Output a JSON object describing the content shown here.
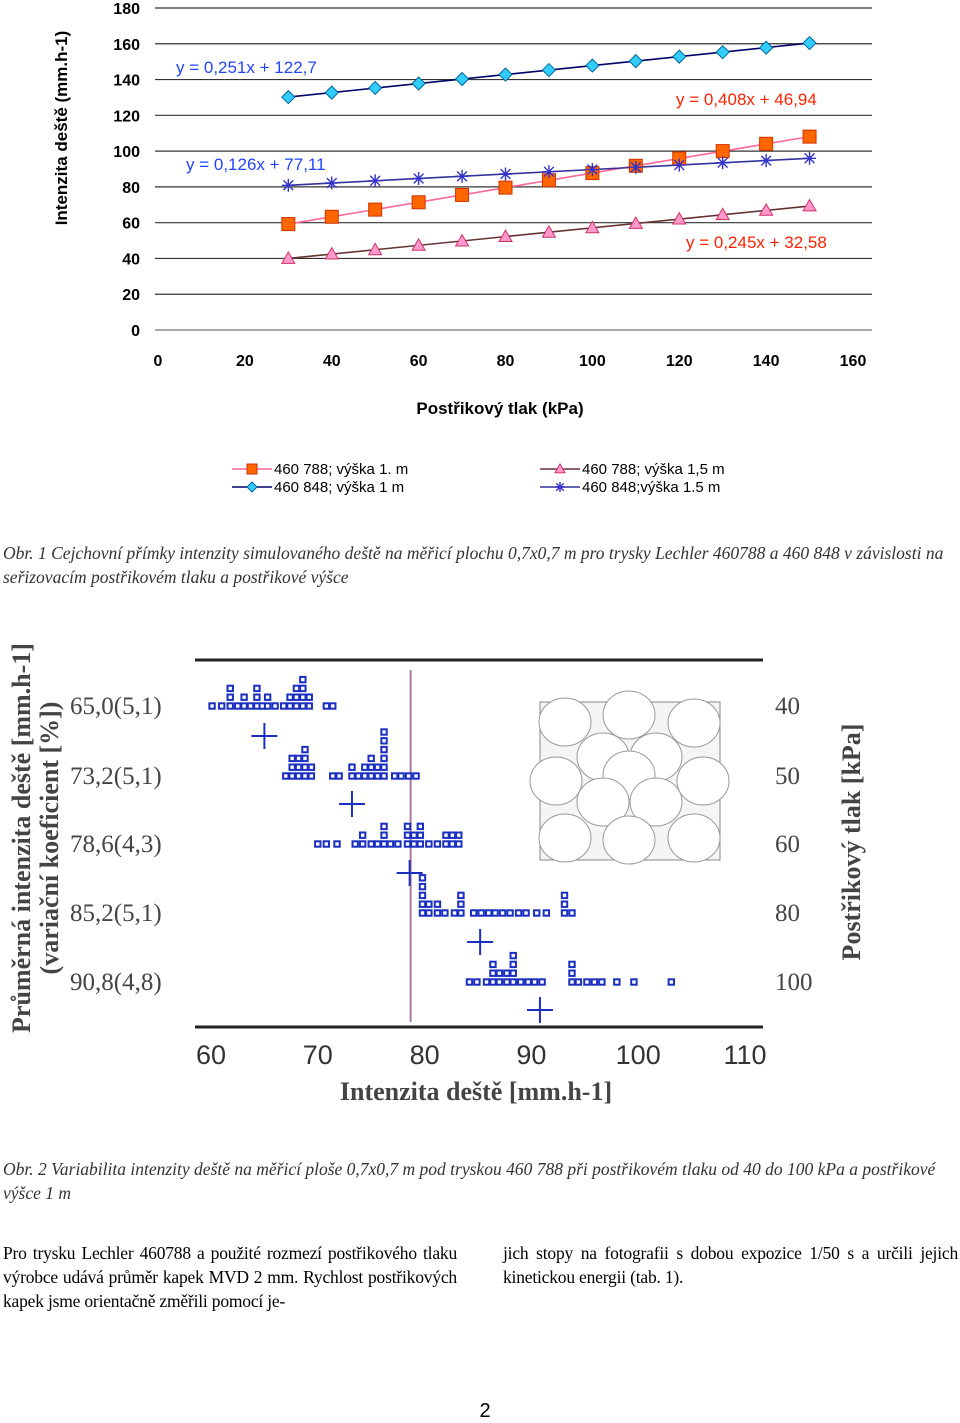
{
  "figure1": {
    "caption": "Obr. 1 Cejchovní přímky intenzity simulovaného deště na měřicí plochu 0,7x0,7 m pro trysky Lechler 460788 a 460 848 v závislosti na seřizovacím postřikovém tlaku a postřikové výšce",
    "chart_data": {
      "type": "scatter",
      "xlabel": "Postřikový tlak (kPa)",
      "ylabel": "Intenzita deště (mm.h-1)",
      "xlim": [
        0,
        160
      ],
      "ylim": [
        0,
        180
      ],
      "x_ticks": [
        "0",
        "20",
        "40",
        "60",
        "80",
        "100",
        "120",
        "140",
        "160"
      ],
      "y_ticks": [
        "0",
        "20",
        "40",
        "60",
        "80",
        "100",
        "120",
        "140",
        "160",
        "180"
      ],
      "grid": "horizontal",
      "legend_position": "bottom",
      "series": [
        {
          "name": "460 788; výška 1. m",
          "marker": "square",
          "color": "#ff6600",
          "edge": "#cc3300",
          "line_color": "#ff6699",
          "equation": "y = 0,408x + 46,94",
          "x": [
            30,
            40,
            50,
            60,
            70,
            80,
            90,
            100,
            110,
            120,
            130,
            140,
            150
          ],
          "y": [
            59.2,
            63.3,
            67.3,
            71.4,
            75.5,
            79.6,
            83.7,
            87.7,
            91.8,
            95.9,
            100.0,
            104.1,
            108.1
          ]
        },
        {
          "name": "460 848; výška 1 m",
          "marker": "diamond",
          "color": "#33ccff",
          "edge": "#006699",
          "line_color": "#000066",
          "equation": "y = 0,251x + 122,7",
          "x": [
            30,
            40,
            50,
            60,
            70,
            80,
            90,
            100,
            110,
            120,
            130,
            140,
            150
          ],
          "y": [
            130.2,
            132.7,
            135.3,
            137.8,
            140.3,
            142.8,
            145.3,
            147.8,
            150.3,
            152.8,
            155.3,
            157.8,
            160.4
          ]
        },
        {
          "name": "460 788; výška 1,5 m",
          "marker": "triangle",
          "color": "#ff99cc",
          "edge": "#cc3366",
          "line_color": "#663333",
          "equation": "y = 0,245x + 32,58",
          "x": [
            30,
            40,
            50,
            60,
            70,
            80,
            90,
            100,
            110,
            120,
            130,
            140,
            150
          ],
          "y": [
            40.0,
            42.4,
            44.8,
            47.3,
            49.7,
            52.2,
            54.6,
            57.1,
            59.5,
            62.0,
            64.4,
            66.9,
            69.3
          ]
        },
        {
          "name": "460 848;výška 1.5 m",
          "marker": "star",
          "color": "#3333cc",
          "edge": "#3333cc",
          "line_color": "#333399",
          "equation": "y = 0,126x + 77,11",
          "x": [
            30,
            40,
            50,
            60,
            70,
            80,
            90,
            100,
            110,
            120,
            130,
            140,
            150
          ],
          "y": [
            80.9,
            82.2,
            83.4,
            84.7,
            85.9,
            87.2,
            88.5,
            89.7,
            91.0,
            92.2,
            93.5,
            94.7,
            96.0
          ]
        }
      ]
    }
  },
  "figure2": {
    "caption": "Obr. 2 Variabilita intenzity deště na měřicí ploše 0,7x0,7 m pod tryskou 460 788 při postřikovém tlaku od 40 do 100 kPa a postřikové výšce 1 m",
    "chart_data": {
      "type": "scatter",
      "xlabel": "Intenzita deště [mm.h-1]",
      "ylabel": "Průměrná intenzita deště [mm.h-1]",
      "ylabel2": "(variační koeficient [%])",
      "right_label": "Postřikový tlak [kPa]",
      "xlim": [
        60,
        110
      ],
      "x_ticks": [
        "60",
        "70",
        "80",
        "90",
        "100",
        "110"
      ],
      "row_labels_left": [
        "65,0(5,1)",
        "73,2(5,1)",
        "78,6(4,3)",
        "85,2(5,1)",
        "90,8(4,8)"
      ],
      "row_labels_right": [
        "40",
        "50",
        "60",
        "80",
        "100"
      ],
      "means": [
        65.0,
        73.2,
        78.6,
        85.2,
        90.8
      ],
      "reference_line_x": 78.6,
      "marker_color": "#1a2fbf",
      "stacks": [
        [
          [
            60.1,
            1
          ],
          [
            61.0,
            1
          ],
          [
            61.8,
            3
          ],
          [
            62.5,
            1
          ],
          [
            63.1,
            2
          ],
          [
            63.7,
            1
          ],
          [
            64.3,
            3
          ],
          [
            64.8,
            1
          ],
          [
            65.3,
            2
          ],
          [
            66.0,
            1
          ],
          [
            66.8,
            1
          ],
          [
            67.4,
            2
          ],
          [
            68.0,
            3
          ],
          [
            68.6,
            4
          ],
          [
            69.2,
            2
          ],
          [
            70.8,
            1
          ],
          [
            71.4,
            1
          ]
        ],
        [
          [
            67.0,
            1
          ],
          [
            67.6,
            3
          ],
          [
            68.2,
            3
          ],
          [
            68.8,
            4
          ],
          [
            69.4,
            2
          ],
          [
            71.4,
            1
          ],
          [
            72.0,
            1
          ],
          [
            73.2,
            2
          ],
          [
            73.8,
            1
          ],
          [
            74.4,
            2
          ],
          [
            75.0,
            3
          ],
          [
            75.6,
            2
          ],
          [
            76.2,
            6
          ],
          [
            77.2,
            1
          ],
          [
            77.8,
            1
          ],
          [
            78.5,
            1
          ],
          [
            79.2,
            1
          ]
        ],
        [
          [
            70.0,
            1
          ],
          [
            70.8,
            1
          ],
          [
            71.8,
            1
          ],
          [
            73.5,
            1
          ],
          [
            74.2,
            2
          ],
          [
            75.0,
            1
          ],
          [
            75.6,
            1
          ],
          [
            76.2,
            3
          ],
          [
            76.8,
            1
          ],
          [
            77.5,
            1
          ],
          [
            78.4,
            3
          ],
          [
            79.0,
            2
          ],
          [
            79.6,
            3
          ],
          [
            80.4,
            1
          ],
          [
            81.2,
            1
          ],
          [
            82.0,
            2
          ],
          [
            82.6,
            2
          ],
          [
            83.2,
            2
          ]
        ],
        [
          [
            79.8,
            5
          ],
          [
            80.4,
            2
          ],
          [
            81.2,
            2
          ],
          [
            81.9,
            1
          ],
          [
            82.8,
            1
          ],
          [
            83.4,
            3
          ],
          [
            84.6,
            1
          ],
          [
            85.3,
            1
          ],
          [
            86.0,
            1
          ],
          [
            86.6,
            1
          ],
          [
            87.3,
            1
          ],
          [
            88.0,
            1
          ],
          [
            88.8,
            1
          ],
          [
            89.5,
            1
          ],
          [
            90.5,
            1
          ],
          [
            91.4,
            1
          ],
          [
            93.1,
            3
          ],
          [
            93.8,
            1
          ]
        ],
        [
          [
            84.2,
            1
          ],
          [
            84.9,
            1
          ],
          [
            85.8,
            1
          ],
          [
            86.4,
            3
          ],
          [
            87.0,
            2
          ],
          [
            87.7,
            2
          ],
          [
            88.3,
            4
          ],
          [
            89.0,
            1
          ],
          [
            89.7,
            1
          ],
          [
            90.3,
            1
          ],
          [
            91.0,
            1
          ],
          [
            93.8,
            3
          ],
          [
            94.4,
            1
          ],
          [
            95.2,
            1
          ],
          [
            95.9,
            1
          ],
          [
            96.6,
            1
          ],
          [
            98.0,
            1
          ],
          [
            99.6,
            1
          ],
          [
            103.1,
            1
          ]
        ]
      ],
      "inset": "nozzle-circle-layout"
    }
  },
  "body_text": {
    "left_column": "Pro trysku Lechler 460788 a použité rozmezí postřikového tlaku výrobce udává průměr kapek MVD 2 mm. Rychlost postřikových kapek jsme orientačně změřili pomocí je-",
    "right_column": "jich stopy na fotografii s dobou expozice 1/50 s a určili jejich kinetickou energii (tab. 1)."
  },
  "page_number": "2"
}
